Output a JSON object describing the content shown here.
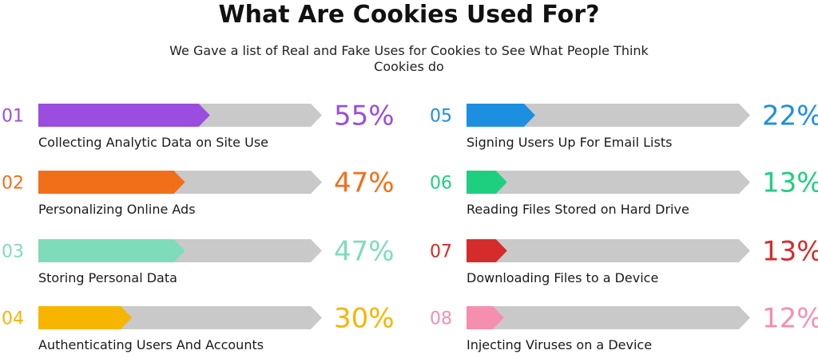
{
  "title": "What Are Cookies Used For?",
  "subtitle": "We Gave a list of Real and Fake Uses for Cookies to See What People Think Cookies do",
  "chart_data": {
    "type": "bar",
    "orientation": "horizontal",
    "title": "What Are Cookies Used For?",
    "subtitle": "We Gave a list of Real and Fake Uses for Cookies to See What People Think Cookies do",
    "track_color": "#c9c9c9",
    "categories": [
      "Collecting Analytic Data on Site Use",
      "Personalizing Online Ads",
      "Storing Personal Data",
      "Authenticating Users And Accounts",
      "Signing Users Up For Email Lists",
      "Reading Files Stored on Hard Drive",
      "Downloading Files to a Device",
      "Injecting Viruses on a Device"
    ],
    "items": [
      {
        "number": "01",
        "label": "Collecting Analytic Data on Site Use",
        "value": 55,
        "value_label": "55%",
        "color": "#9b4de0"
      },
      {
        "number": "02",
        "label": "Personalizing Online Ads",
        "value": 47,
        "value_label": "47%",
        "color": "#f26f1a"
      },
      {
        "number": "03",
        "label": "Storing Personal Data",
        "value": 47,
        "value_label": "47%",
        "color": "#7fdcbb"
      },
      {
        "number": "04",
        "label": "Authenticating Users And Accounts",
        "value": 30,
        "value_label": "30%",
        "color": "#f7b500"
      },
      {
        "number": "05",
        "label": "Signing Users Up For Email Lists",
        "value": 22,
        "value_label": "22%",
        "color": "#1d8fe0"
      },
      {
        "number": "06",
        "label": "Reading Files Stored on Hard Drive",
        "value": 13,
        "value_label": "13%",
        "color": "#1fcf80"
      },
      {
        "number": "07",
        "label": "Downloading Files to a Device",
        "value": 13,
        "value_label": "13%",
        "color": "#d52b2b"
      },
      {
        "number": "08",
        "label": "Injecting Viruses on a Device",
        "value": 12,
        "value_label": "12%",
        "color": "#f58fb0"
      }
    ]
  }
}
